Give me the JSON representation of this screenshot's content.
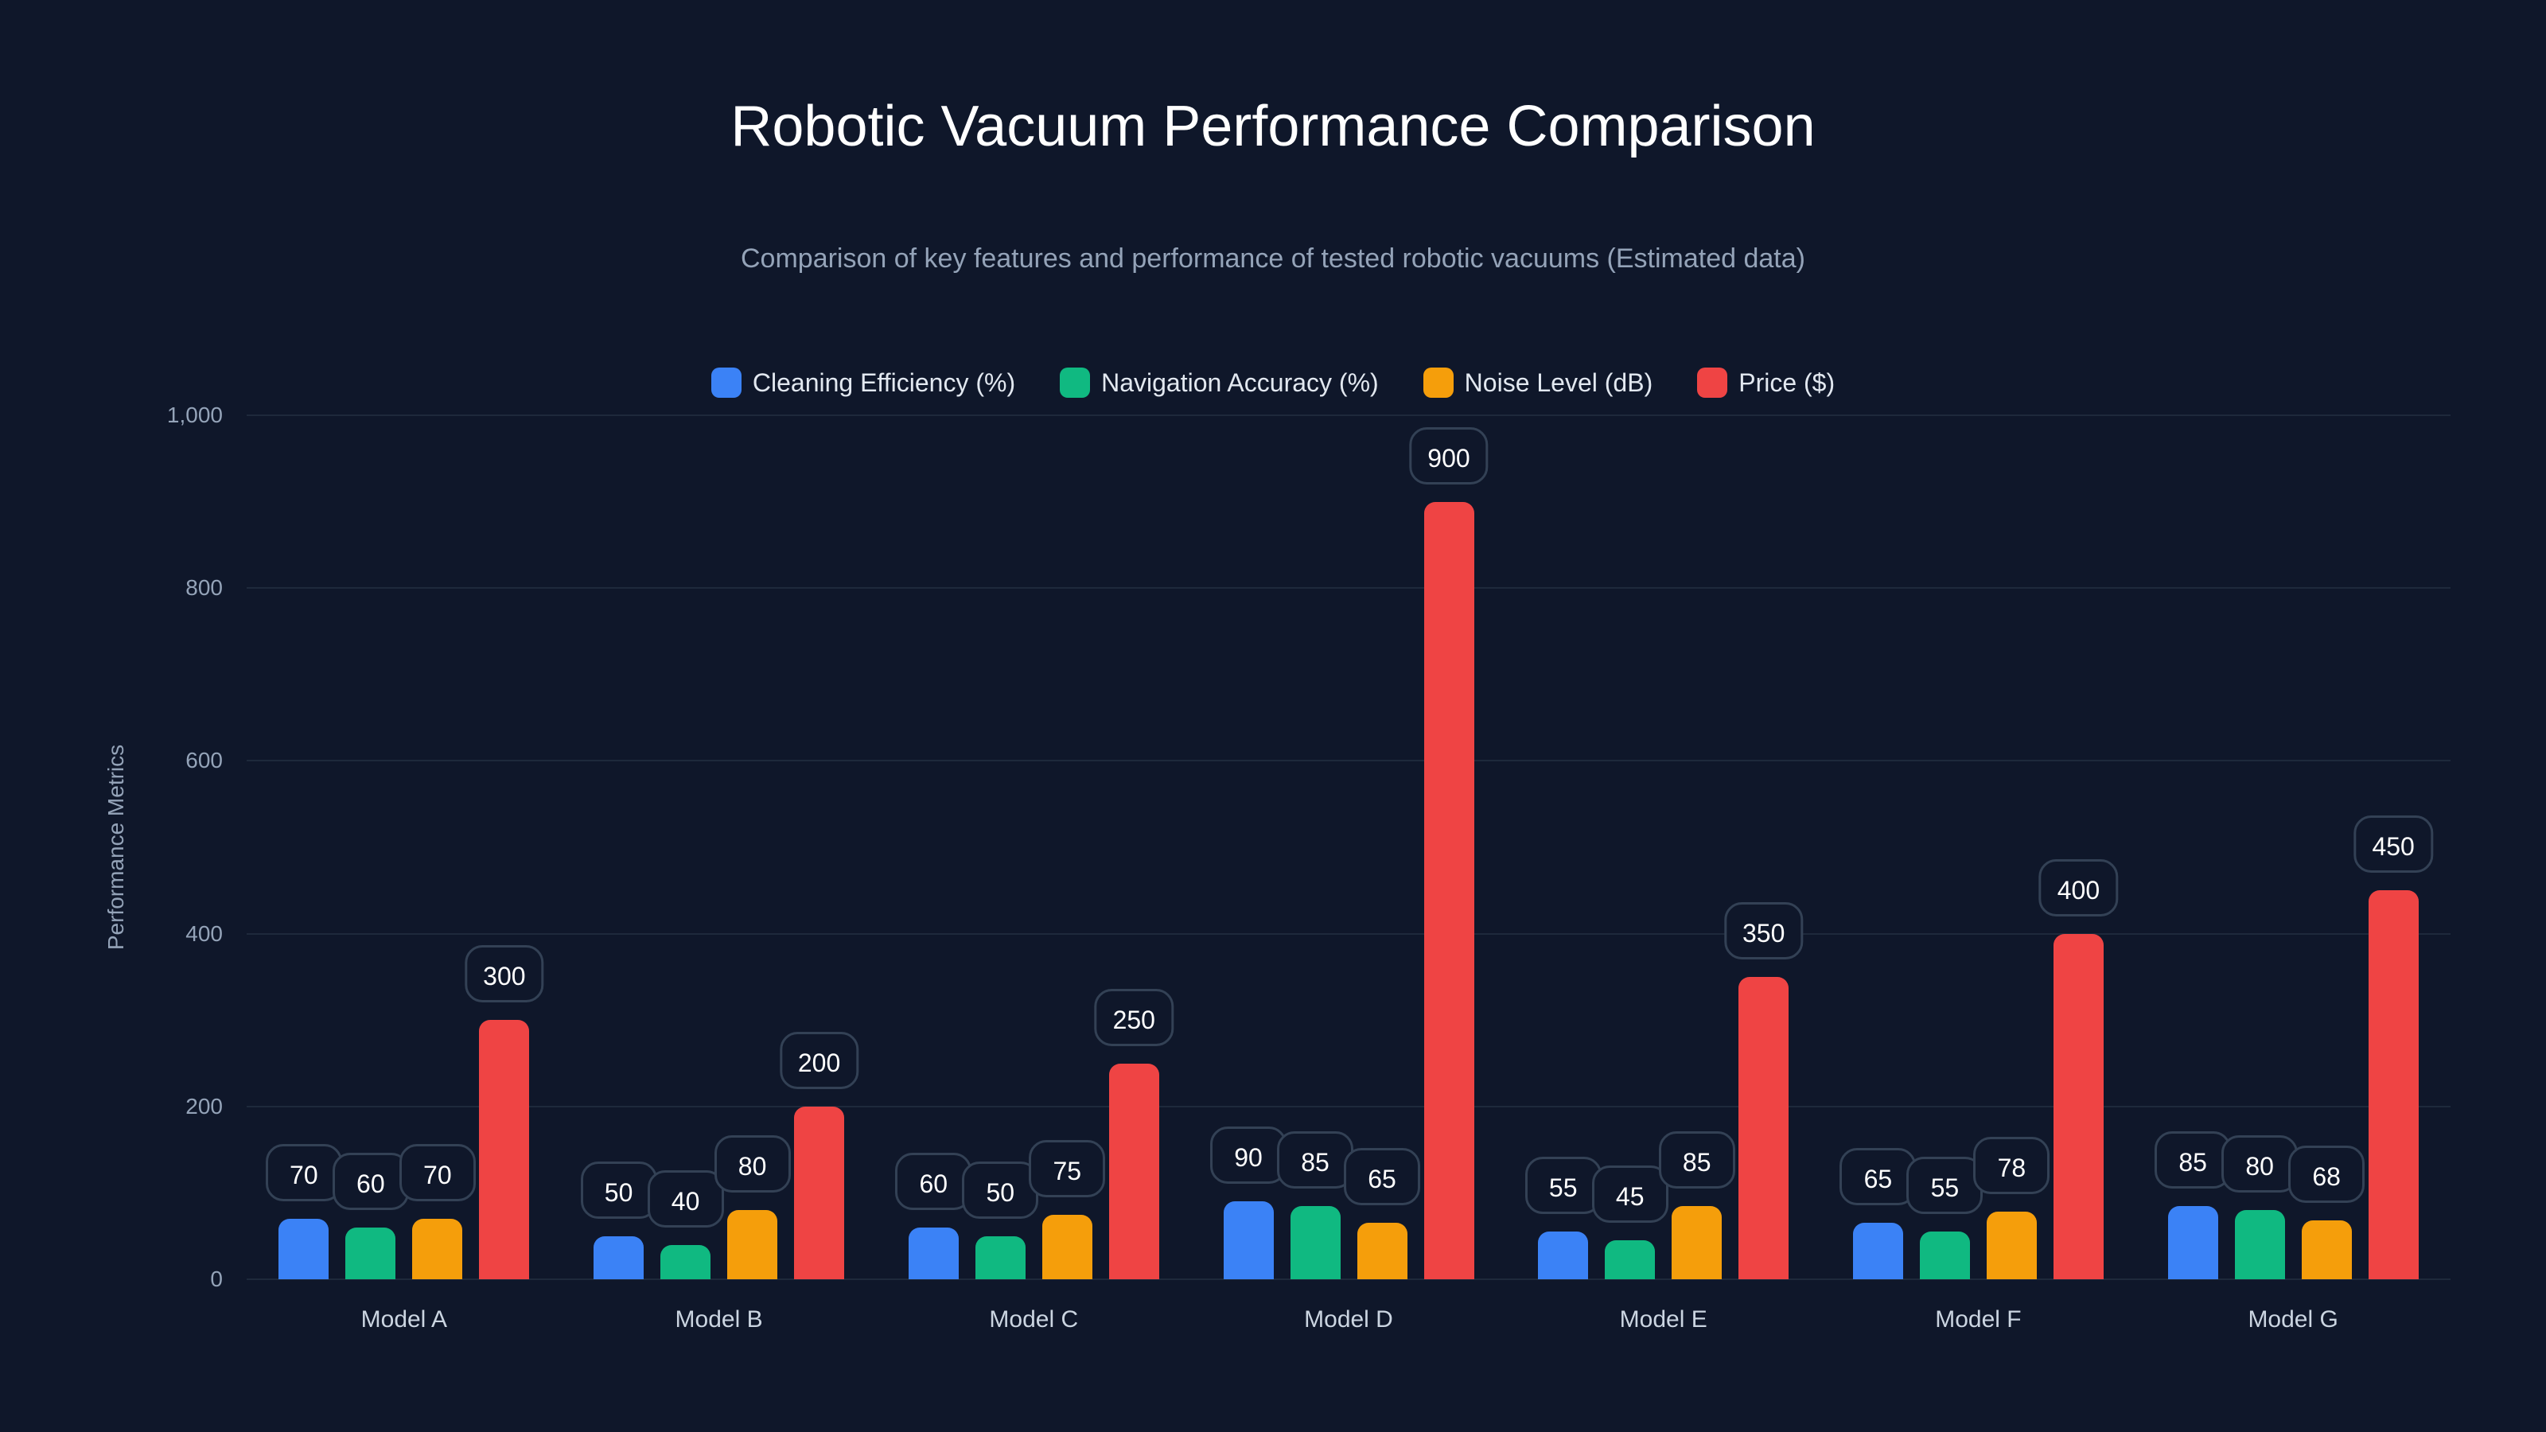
{
  "chart_data": {
    "type": "bar",
    "title": "Robotic Vacuum Performance Comparison",
    "subtitle": "Comparison of key features and performance of tested robotic vacuums (Estimated data)",
    "xlabel": "",
    "ylabel": "Performance Metrics",
    "ylim": [
      0,
      1000
    ],
    "yticks": [
      "0",
      "200",
      "400",
      "600",
      "800",
      "1,000"
    ],
    "grid": true,
    "legend_position": "top",
    "categories": [
      "Model A",
      "Model B",
      "Model C",
      "Model D",
      "Model E",
      "Model F",
      "Model G"
    ],
    "series": [
      {
        "name": "Cleaning Efficiency (%)",
        "color": "#3b82f6",
        "values": [
          70,
          50,
          60,
          90,
          55,
          65,
          85
        ]
      },
      {
        "name": "Navigation Accuracy (%)",
        "color": "#10b981",
        "values": [
          60,
          40,
          50,
          85,
          45,
          55,
          80
        ]
      },
      {
        "name": "Noise Level (dB)",
        "color": "#f59e0b",
        "values": [
          70,
          80,
          75,
          65,
          85,
          78,
          68
        ]
      },
      {
        "name": "Price ($)",
        "color": "#ef4444",
        "values": [
          300,
          200,
          250,
          900,
          350,
          400,
          450
        ]
      }
    ]
  },
  "colors": {
    "background": "#0f172a",
    "grid": "#1e293b",
    "label_border": "#334155",
    "axis_text": "#94a3b8"
  }
}
